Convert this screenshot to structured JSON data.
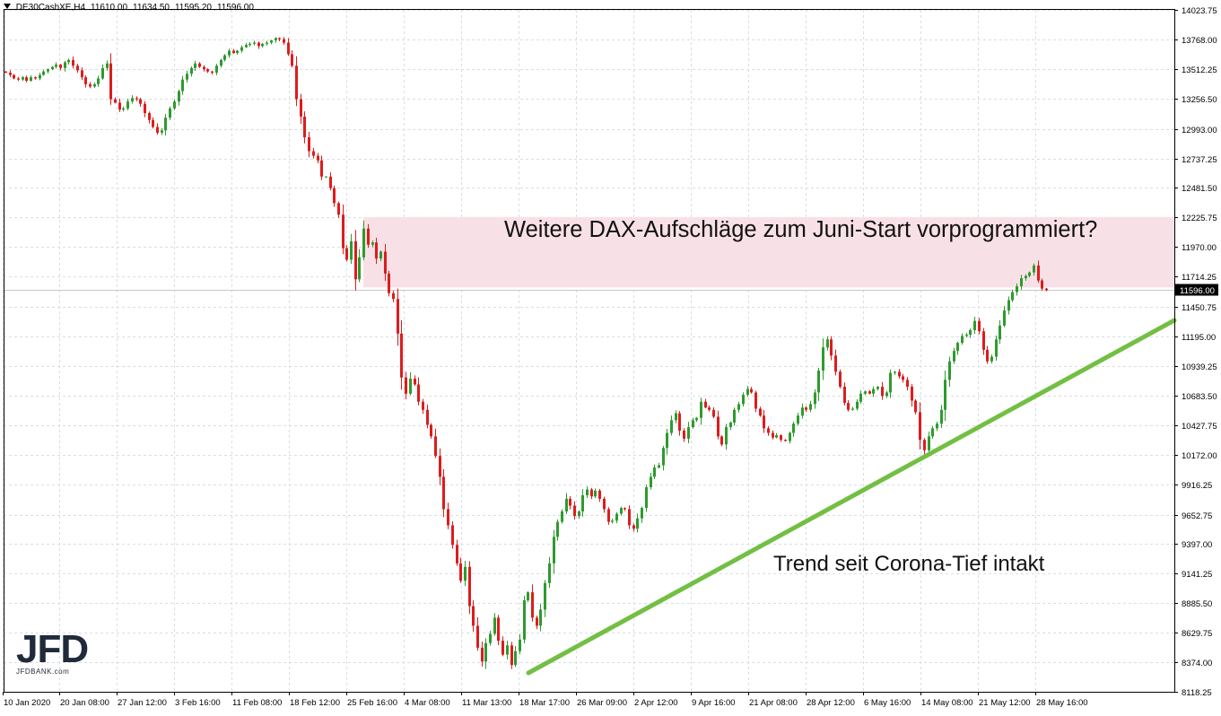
{
  "header": {
    "symbol": ".DE30CashXE,H4",
    "open": "11610.00",
    "high": "11634.50",
    "low": "11595.20",
    "close": "11596.00"
  },
  "annotations": {
    "headline": "Weitere DAX-Aufschläge zum Juni-Start vorprogrammiert?",
    "trend_label": "Trend seit Corona-Tief intakt"
  },
  "current_price_label": "11596.00",
  "logo": {
    "mark": "JFD",
    "sub": "JFDBANK.com"
  },
  "colors": {
    "bull": "#2e9a2e",
    "bear": "#dd1c1c",
    "trendline": "#72bf44",
    "zone": "#f8e1e6",
    "grid": "#d9dde6"
  },
  "chart_data": {
    "type": "candlestick",
    "timeframe": "H4",
    "ylim": [
      8118.25,
      14023.75
    ],
    "y_ticks": [
      "14023.75",
      "13768.00",
      "13512.25",
      "13256.50",
      "12993.00",
      "12737.25",
      "12481.50",
      "12225.75",
      "11970.00",
      "11714.25",
      "11450.75",
      "11195.00",
      "10939.25",
      "10683.50",
      "10427.75",
      "10172.00",
      "9916.25",
      "9652.75",
      "9397.00",
      "9141.25",
      "8885.50",
      "8629.75",
      "8374.00",
      "8118.25"
    ],
    "x_labels": [
      "10 Jan 2020",
      "20 Jan 08:00",
      "27 Jan 12:00",
      "3 Feb 16:00",
      "11 Feb 08:00",
      "18 Feb 12:00",
      "25 Feb 16:00",
      "4 Mar 08:00",
      "11 Mar 13:00",
      "18 Mar 17:00",
      "26 Mar 09:00",
      "2 Apr 12:00",
      "9 Apr 16:00",
      "21 Apr 08:00",
      "28 Apr 12:00",
      "6 May 16:00",
      "14 May 08:00",
      "21 May 12:00",
      "28 May 16:00"
    ],
    "current_price": 11596.0,
    "resistance_zone": [
      11620,
      12230
    ],
    "trendline": {
      "from": [
        "18 Mar 17:00",
        8300
      ],
      "to": [
        "29 May",
        11290
      ]
    },
    "series": [
      {
        "name": ".DE30CashXE,H4",
        "close": [
          13480,
          13460,
          13430,
          13420,
          13440,
          13410,
          13440,
          13430,
          13460,
          13490,
          13510,
          13530,
          13550,
          13520,
          13570,
          13590,
          13540,
          13500,
          13440,
          13380,
          13360,
          13380,
          13430,
          13520,
          13560,
          13250,
          13220,
          13160,
          13170,
          13230,
          13260,
          13250,
          13210,
          13130,
          13070,
          13010,
          12960,
          12980,
          13090,
          13170,
          13230,
          13320,
          13420,
          13470,
          13520,
          13560,
          13530,
          13510,
          13490,
          13480,
          13540,
          13590,
          13630,
          13670,
          13650,
          13670,
          13700,
          13720,
          13730,
          13740,
          13710,
          13730,
          13740,
          13760,
          13780,
          13770,
          13740,
          13640,
          13540,
          13250,
          13100,
          12920,
          12800,
          12760,
          12720,
          12580,
          12580,
          12480,
          12350,
          12250,
          11960,
          11860,
          12020,
          11690,
          11880,
          12130,
          11990,
          12010,
          11870,
          11930,
          11740,
          11570,
          11520,
          11220,
          10840,
          10700,
          10830,
          10780,
          10630,
          10560,
          10430,
          10330,
          10160,
          9980,
          9700,
          9560,
          9390,
          9230,
          9080,
          9200,
          8860,
          8690,
          8500,
          8380,
          8540,
          8620,
          8760,
          8560,
          8440,
          8520,
          8350,
          8470,
          8570,
          8910,
          8980,
          8760,
          8690,
          8830,
          9060,
          9230,
          9460,
          9590,
          9680,
          9790,
          9730,
          9640,
          9680,
          9820,
          9870,
          9810,
          9860,
          9790,
          9700,
          9590,
          9600,
          9660,
          9710,
          9700,
          9560,
          9530,
          9620,
          9710,
          9890,
          9980,
          10060,
          10080,
          10230,
          10360,
          10470,
          10530,
          10380,
          10310,
          10410,
          10470,
          10490,
          10630,
          10580,
          10560,
          10500,
          10330,
          10260,
          10410,
          10450,
          10560,
          10610,
          10690,
          10740,
          10710,
          10570,
          10510,
          10400,
          10360,
          10320,
          10340,
          10300,
          10290,
          10360,
          10440,
          10510,
          10580,
          10560,
          10610,
          10710,
          10900,
          11100,
          11170,
          11030,
          10890,
          10760,
          10620,
          10560,
          10570,
          10630,
          10700,
          10720,
          10700,
          10740,
          10760,
          10680,
          10710,
          10880,
          10890,
          10850,
          10820,
          10760,
          10640,
          10540,
          10300,
          10210,
          10330,
          10400,
          10440,
          10560,
          10820,
          10980,
          11070,
          11140,
          11200,
          11210,
          11250,
          11330,
          11240,
          11080,
          10980,
          11020,
          11170,
          11290,
          11420,
          11510,
          11580,
          11630,
          11700,
          11720,
          11750,
          11810,
          11680,
          11610,
          11596
        ]
      }
    ]
  }
}
